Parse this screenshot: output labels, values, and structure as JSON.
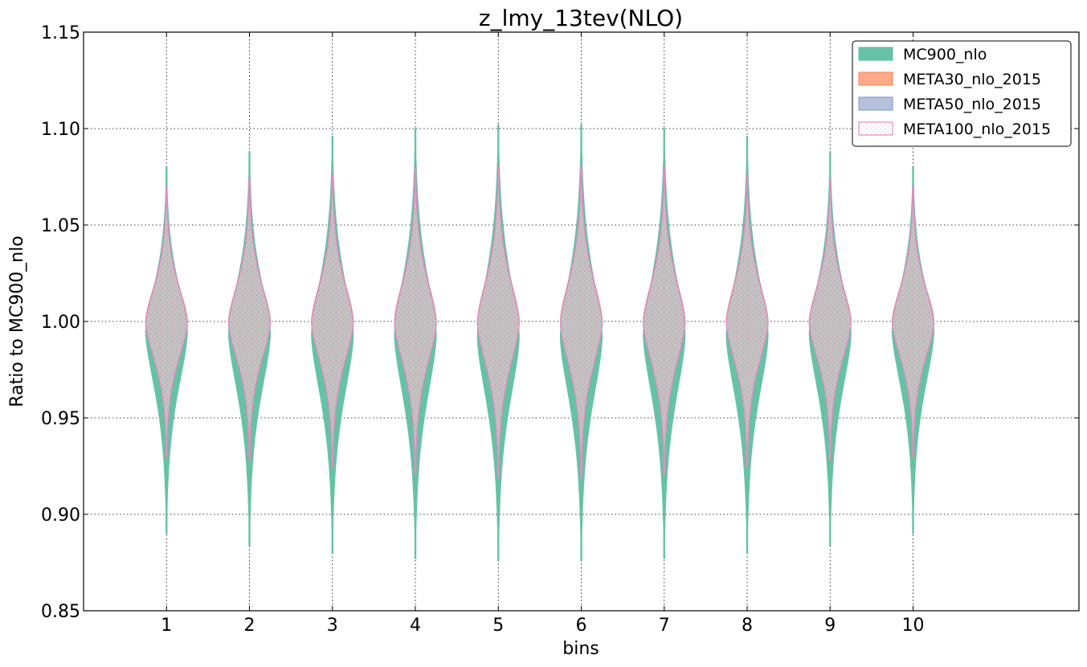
{
  "chart_data": {
    "type": "violin",
    "title": "z_lmy_13tev(NLO)",
    "xlabel": "bins",
    "ylabel": "Ratio to MC900_nlo",
    "categories": [
      "1",
      "2",
      "3",
      "4",
      "5",
      "6",
      "7",
      "8",
      "9",
      "10"
    ],
    "xlim": [
      0,
      12
    ],
    "ylim": [
      0.85,
      1.15
    ],
    "yticks": [
      "0.85",
      "0.90",
      "0.95",
      "1.00",
      "1.05",
      "1.10",
      "1.15"
    ],
    "grid": true,
    "legend_position": "top-right",
    "series": [
      {
        "name": "MC900_nlo",
        "color": "#66c2a5",
        "fill": "solid",
        "min": [
          0.89,
          0.884,
          0.88,
          0.877,
          0.876,
          0.876,
          0.877,
          0.88,
          0.884,
          0.89
        ],
        "max": [
          1.08,
          1.088,
          1.096,
          1.1,
          1.102,
          1.102,
          1.1,
          1.096,
          1.088,
          1.08
        ],
        "center": [
          0.995,
          0.994,
          0.993,
          0.993,
          0.992,
          0.992,
          0.993,
          0.993,
          0.994,
          0.995
        ]
      },
      {
        "name": "META30_nlo_2015",
        "color": "#fc8d62",
        "fill": "solid",
        "min": [
          0.93,
          0.928,
          0.925,
          0.921,
          0.919,
          0.919,
          0.921,
          0.925,
          0.928,
          0.93
        ],
        "max": [
          1.068,
          1.072,
          1.076,
          1.079,
          1.08,
          1.08,
          1.079,
          1.076,
          1.072,
          1.068
        ],
        "center": [
          1.0,
          1.0,
          1.0,
          1.0,
          1.0,
          1.0,
          1.0,
          1.0,
          1.0,
          1.0
        ]
      },
      {
        "name": "META50_nlo_2015",
        "color": "#8da0cb",
        "fill": "solid",
        "min": [
          0.932,
          0.93,
          0.926,
          0.922,
          0.92,
          0.92,
          0.922,
          0.926,
          0.93,
          0.932
        ],
        "max": [
          1.07,
          1.074,
          1.077,
          1.08,
          1.081,
          1.081,
          1.08,
          1.077,
          1.074,
          1.07
        ],
        "center": [
          0.999,
          0.999,
          0.999,
          0.999,
          0.999,
          0.999,
          0.999,
          0.999,
          0.999,
          0.999
        ]
      },
      {
        "name": "META100_nlo_2015",
        "color": "#e78ac3",
        "fill": "hatched",
        "min": [
          0.931,
          0.929,
          0.925,
          0.921,
          0.919,
          0.919,
          0.921,
          0.925,
          0.929,
          0.931
        ],
        "max": [
          1.069,
          1.073,
          1.076,
          1.079,
          1.08,
          1.08,
          1.079,
          1.076,
          1.073,
          1.069
        ],
        "center": [
          0.999,
          0.999,
          0.999,
          0.999,
          0.999,
          0.999,
          0.999,
          0.999,
          0.999,
          0.999
        ]
      }
    ]
  }
}
